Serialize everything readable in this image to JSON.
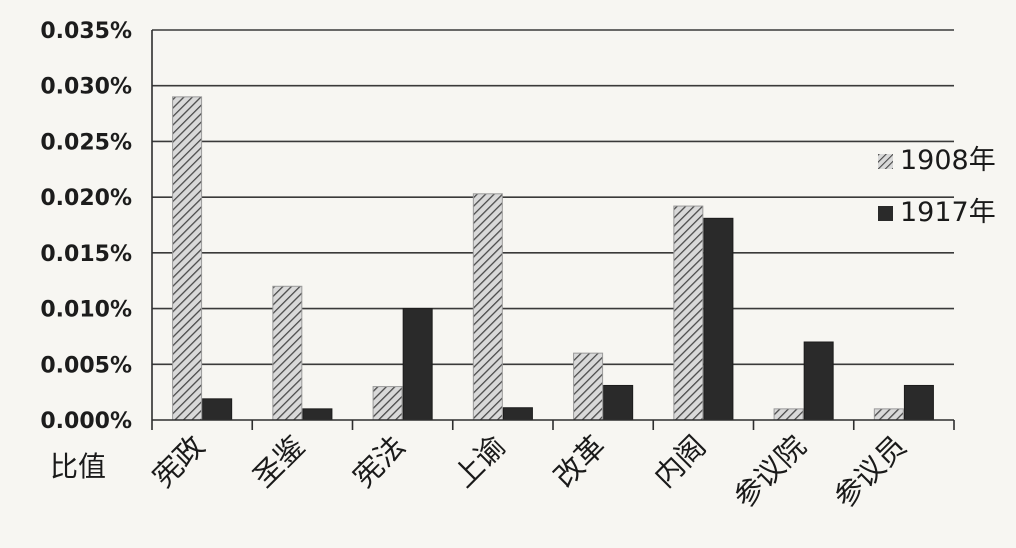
{
  "chart_data": {
    "type": "bar",
    "ylabel": "比值",
    "categories": [
      "宪政",
      "圣鉴",
      "宪法",
      "上谕",
      "改革",
      "内阁",
      "参议院",
      "参议员"
    ],
    "series": [
      {
        "name": "1908年",
        "pattern": "diagonal-hatch",
        "color": "#8a8a8a",
        "values": [
          0.029,
          0.012,
          0.003,
          0.0203,
          0.006,
          0.0192,
          0.001,
          0.001
        ]
      },
      {
        "name": "1917年",
        "pattern": "solid",
        "color": "#2a2a2a",
        "values": [
          0.0019,
          0.001,
          0.01,
          0.0011,
          0.0031,
          0.0181,
          0.007,
          0.0031
        ]
      }
    ],
    "ylim": [
      0,
      0.035
    ],
    "yticks": [
      "0.000%",
      "0.005%",
      "0.010%",
      "0.015%",
      "0.020%",
      "0.025%",
      "0.030%",
      "0.035%"
    ],
    "grid": true,
    "legend": "right"
  }
}
